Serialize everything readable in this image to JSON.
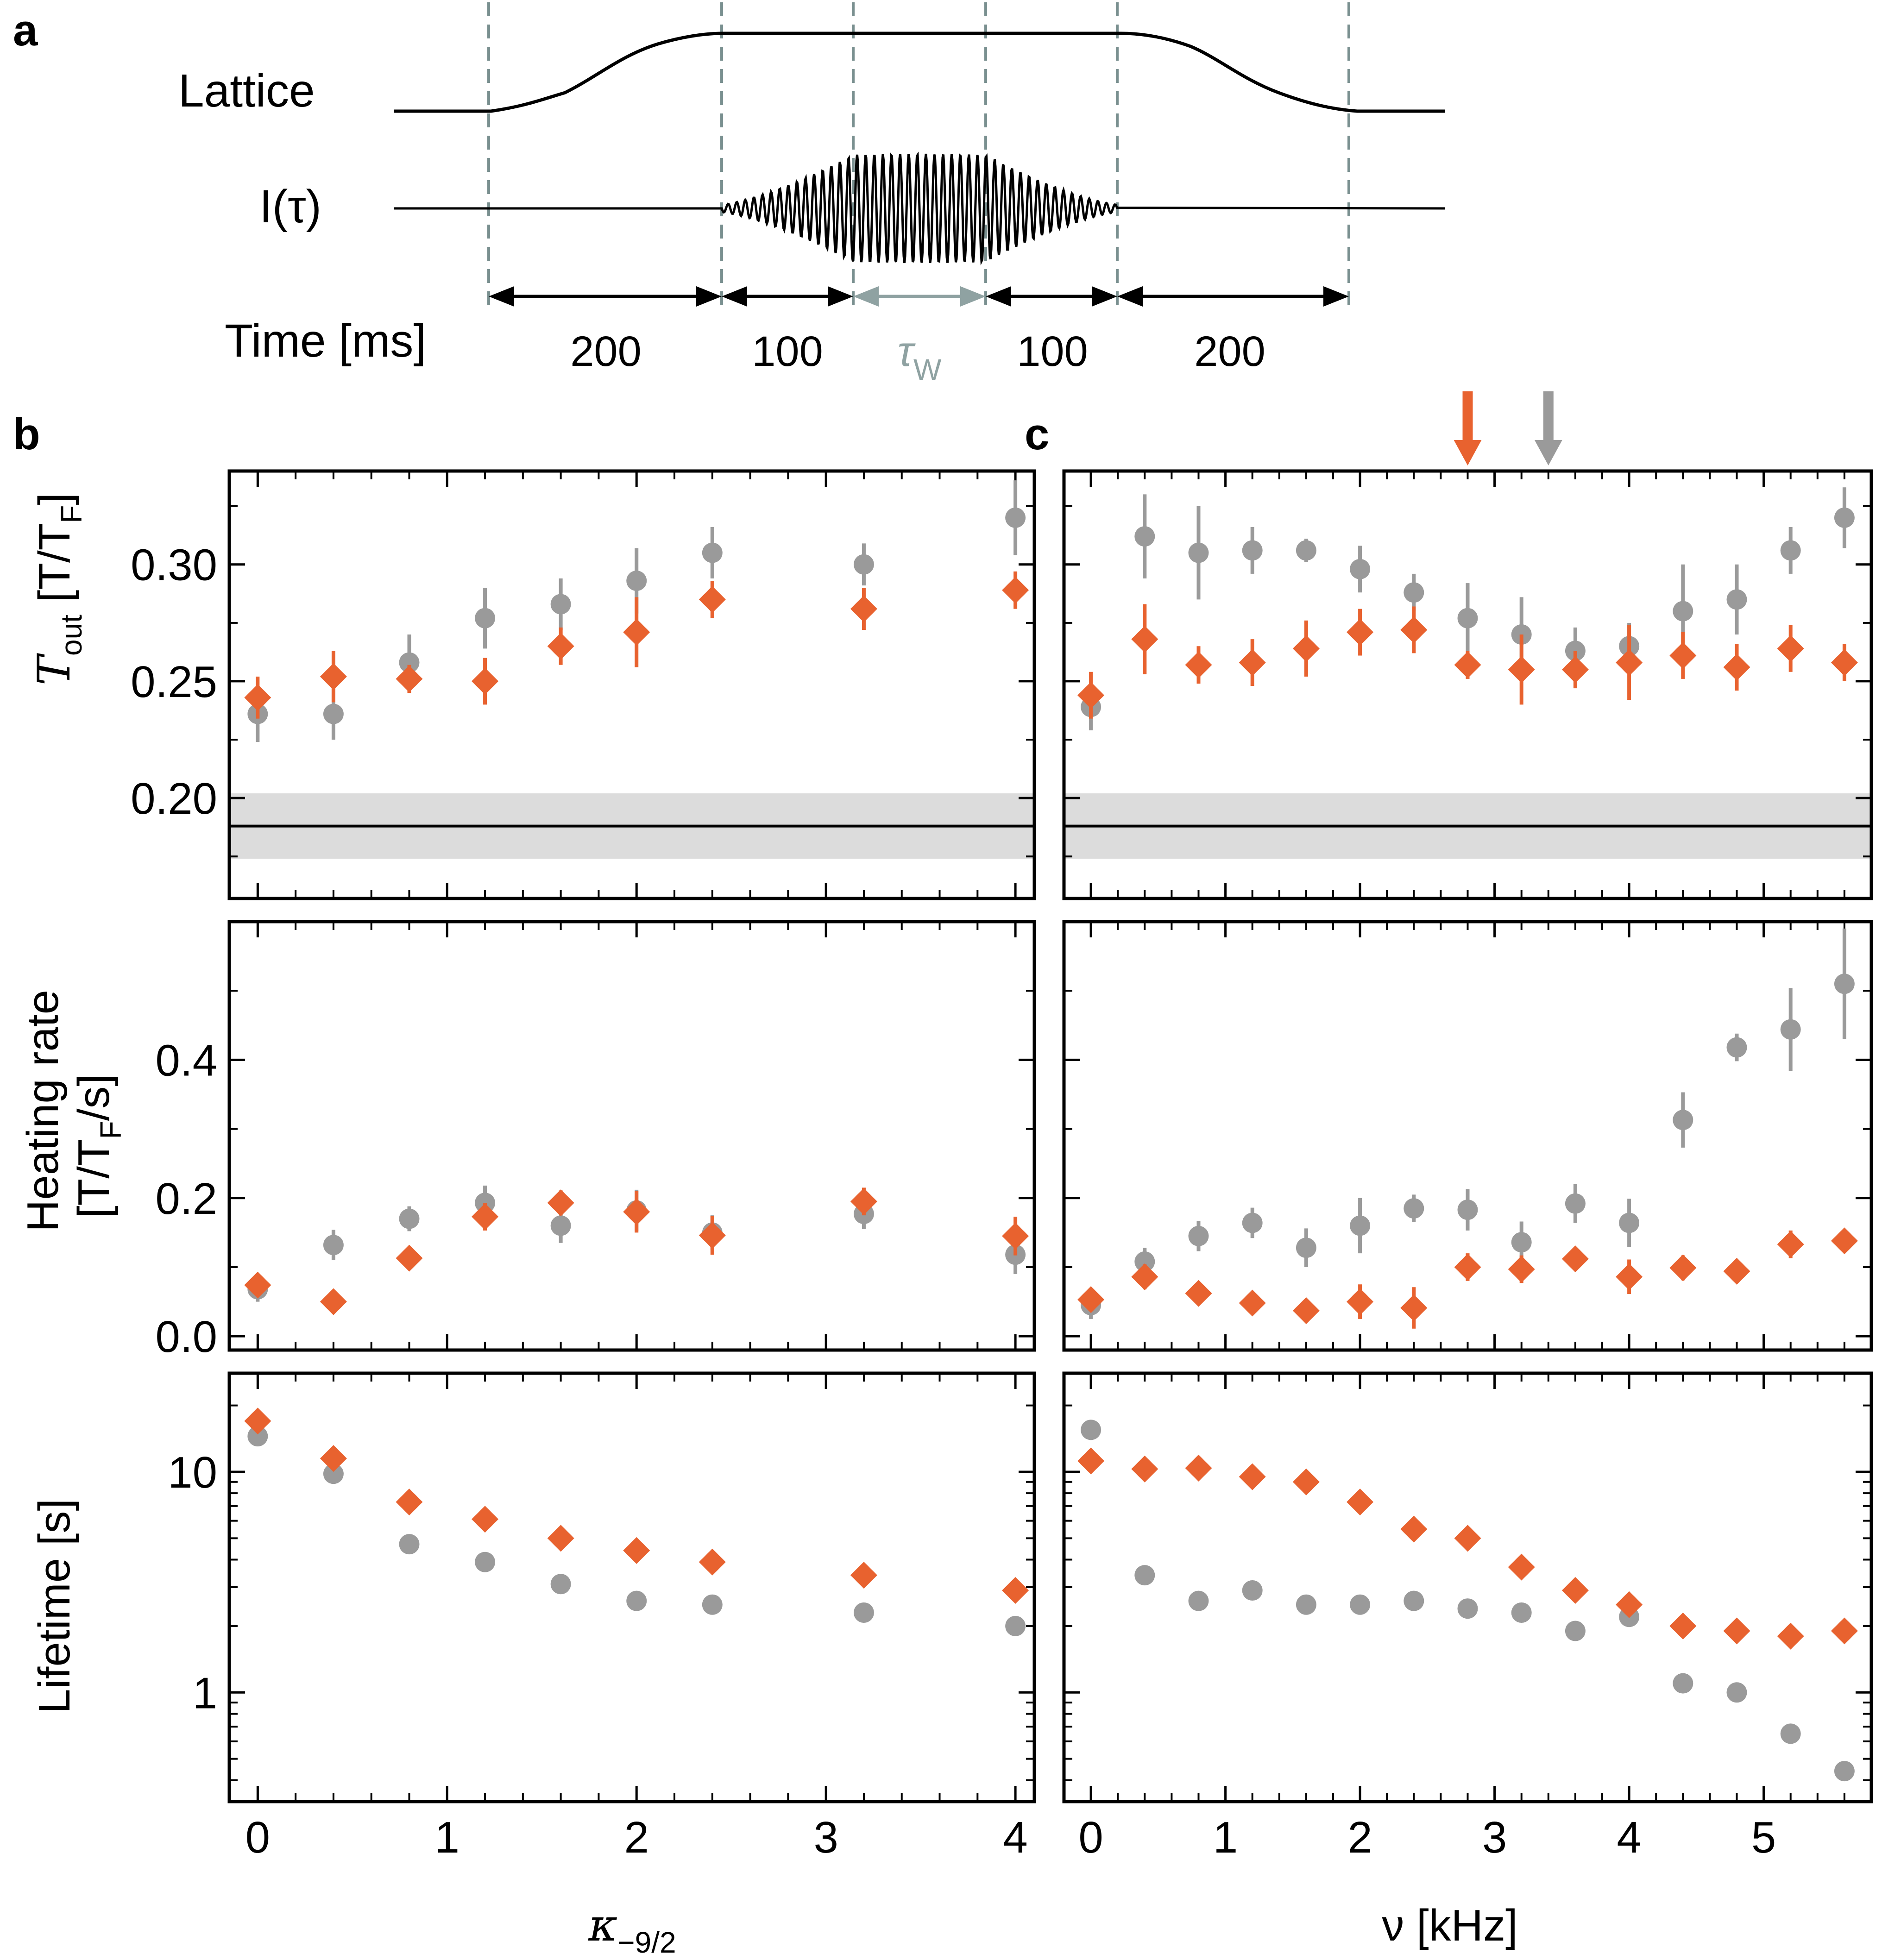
{
  "colors": {
    "orange": "#e8622f",
    "gray": "#9a9a9a",
    "band": "#dcdcdc",
    "dash": "#7a9090",
    "waitArrow": "#8fa2a2"
  },
  "panel_a": {
    "letter": "a",
    "lattice_label": "Lattice",
    "signal_label": "I(τ)",
    "time_label": "Time [ms]",
    "segments": [
      "200",
      "100",
      "τ",
      "100",
      "200"
    ],
    "wait_symbol": "τ",
    "wait_subscript": "W"
  },
  "panel_b": {
    "letter": "b",
    "xlabel_symbol": "κ",
    "xlabel_subscript": "−9/2"
  },
  "panel_c": {
    "letter": "c",
    "xlabel": "ν [kHz]"
  },
  "ylabels": {
    "tout": {
      "main": "T",
      "sub": "out",
      "unit_open": " [T/T",
      "unit_sub": "F",
      "unit_close": "]"
    },
    "heating_line1": "Heating rate",
    "heating_line2": {
      "open": "[T/T",
      "sub": "F",
      "close": "/s]"
    },
    "lifetime": "Lifetime [s]"
  },
  "chart_data": [
    {
      "id": "b-tout",
      "type": "scatter",
      "xlabel": "κ−9/2",
      "ylabel": "Tout [T/TF]",
      "xlim": [
        -0.15,
        4.1
      ],
      "ylim": [
        0.157,
        0.34
      ],
      "yscale": "linear",
      "yticks": [
        0.2,
        0.25,
        0.3
      ],
      "ytick_labels": [
        "0.20",
        "0.25",
        "0.30"
      ],
      "reference": {
        "value": 0.188,
        "band": [
          0.174,
          0.202
        ]
      },
      "series": [
        {
          "name": "gray",
          "marker": "circle",
          "x": [
            0,
            0.4,
            0.8,
            1.2,
            1.6,
            2.0,
            2.4,
            3.2,
            4.0
          ],
          "y": [
            0.236,
            0.236,
            0.258,
            0.277,
            0.283,
            0.293,
            0.305,
            0.3,
            0.32
          ],
          "err": [
            0.012,
            0.011,
            0.012,
            0.013,
            0.011,
            0.014,
            0.011,
            0.009,
            0.016
          ]
        },
        {
          "name": "orange",
          "marker": "diamond",
          "x": [
            0,
            0.4,
            0.8,
            1.2,
            1.6,
            2.0,
            2.4,
            3.2,
            4.0
          ],
          "y": [
            0.243,
            0.252,
            0.251,
            0.25,
            0.265,
            0.271,
            0.285,
            0.281,
            0.289
          ],
          "err": [
            0.009,
            0.011,
            0.006,
            0.01,
            0.008,
            0.015,
            0.008,
            0.009,
            0.008
          ]
        }
      ]
    },
    {
      "id": "b-heating",
      "type": "scatter",
      "xlabel": "κ−9/2",
      "ylabel": "Heating rate [T/TF/s]",
      "xlim": [
        -0.15,
        4.1
      ],
      "ylim": [
        -0.02,
        0.6
      ],
      "yscale": "linear",
      "yticks": [
        0.0,
        0.2,
        0.4
      ],
      "ytick_labels": [
        "0.0",
        "0.2",
        "0.4"
      ],
      "series": [
        {
          "name": "gray",
          "marker": "circle",
          "x": [
            0,
            0.4,
            0.8,
            1.2,
            1.6,
            2.0,
            2.4,
            3.2,
            4.0
          ],
          "y": [
            0.068,
            0.132,
            0.17,
            0.193,
            0.16,
            0.182,
            0.15,
            0.177,
            0.118
          ],
          "err": [
            0.018,
            0.022,
            0.018,
            0.025,
            0.025,
            0.03,
            0.025,
            0.022,
            0.028
          ]
        },
        {
          "name": "orange",
          "marker": "diamond",
          "x": [
            0,
            0.4,
            0.8,
            1.2,
            1.6,
            2.0,
            2.4,
            3.2,
            4.0
          ],
          "y": [
            0.074,
            0.05,
            0.113,
            0.173,
            0.193,
            0.18,
            0.146,
            0.195,
            0.145
          ],
          "err": [
            0.015,
            0.01,
            0.012,
            0.02,
            0.018,
            0.03,
            0.028,
            0.02,
            0.028
          ]
        }
      ]
    },
    {
      "id": "b-lifetime",
      "type": "scatter",
      "xlabel": "κ−9/2",
      "ylabel": "Lifetime [s]",
      "xlim": [
        -0.15,
        4.1
      ],
      "ylim": [
        0.32,
        28
      ],
      "yscale": "log",
      "yticks": [
        1,
        10
      ],
      "ytick_labels": [
        "1",
        "10"
      ],
      "xticks": [
        0,
        1,
        2,
        3,
        4
      ],
      "xtick_labels": [
        "0",
        "1",
        "2",
        "3",
        "4"
      ],
      "series": [
        {
          "name": "gray",
          "marker": "circle",
          "x": [
            0,
            0.4,
            0.8,
            1.2,
            1.6,
            2.0,
            2.4,
            3.2,
            4.0
          ],
          "y": [
            14.5,
            9.8,
            4.7,
            3.9,
            3.1,
            2.6,
            2.5,
            2.3,
            2.0
          ]
        },
        {
          "name": "orange",
          "marker": "diamond",
          "x": [
            0,
            0.4,
            0.8,
            1.2,
            1.6,
            2.0,
            2.4,
            3.2,
            4.0
          ],
          "y": [
            17.0,
            11.5,
            7.3,
            6.1,
            5.0,
            4.4,
            3.9,
            3.4,
            2.9
          ]
        }
      ]
    },
    {
      "id": "c-tout",
      "type": "scatter",
      "xlabel": "ν [kHz]",
      "ylabel": "Tout [T/TF]",
      "xlim": [
        -0.2,
        5.8
      ],
      "ylim": [
        0.157,
        0.34
      ],
      "yscale": "linear",
      "yticks": [
        0.2,
        0.25,
        0.3
      ],
      "reference": {
        "value": 0.188,
        "band": [
          0.174,
          0.202
        ]
      },
      "resonance_arrows": [
        {
          "x": 2.8,
          "color": "orange"
        },
        {
          "x": 3.4,
          "color": "gray"
        }
      ],
      "series": [
        {
          "name": "gray",
          "marker": "circle",
          "x": [
            0,
            0.4,
            0.8,
            1.2,
            1.6,
            2.0,
            2.4,
            2.8,
            3.2,
            3.6,
            4.0,
            4.4,
            4.8,
            5.2,
            5.6
          ],
          "y": [
            0.239,
            0.312,
            0.305,
            0.306,
            0.306,
            0.298,
            0.288,
            0.277,
            0.27,
            0.263,
            0.265,
            0.28,
            0.285,
            0.306,
            0.32
          ],
          "err": [
            0.01,
            0.018,
            0.02,
            0.01,
            0.005,
            0.01,
            0.008,
            0.015,
            0.016,
            0.01,
            0.01,
            0.02,
            0.015,
            0.01,
            0.013
          ]
        },
        {
          "name": "orange",
          "marker": "diamond",
          "x": [
            0,
            0.4,
            0.8,
            1.2,
            1.6,
            2.0,
            2.4,
            2.8,
            3.2,
            3.6,
            4.0,
            4.4,
            4.8,
            5.2,
            5.6
          ],
          "y": [
            0.244,
            0.268,
            0.257,
            0.258,
            0.264,
            0.271,
            0.272,
            0.257,
            0.255,
            0.255,
            0.258,
            0.261,
            0.256,
            0.264,
            0.258
          ],
          "err": [
            0.01,
            0.015,
            0.008,
            0.01,
            0.012,
            0.01,
            0.01,
            0.006,
            0.015,
            0.008,
            0.016,
            0.01,
            0.01,
            0.01,
            0.008
          ]
        }
      ]
    },
    {
      "id": "c-heating",
      "type": "scatter",
      "xlabel": "ν [kHz]",
      "ylabel": "Heating rate [T/TF/s]",
      "xlim": [
        -0.2,
        5.8
      ],
      "ylim": [
        -0.02,
        0.6
      ],
      "yscale": "linear",
      "yticks": [
        0.0,
        0.2,
        0.4
      ],
      "series": [
        {
          "name": "gray",
          "marker": "circle",
          "x": [
            0,
            0.4,
            0.8,
            1.2,
            1.6,
            2.0,
            2.4,
            2.8,
            3.2,
            3.6,
            4.0,
            4.4,
            4.8,
            5.2,
            5.6
          ],
          "y": [
            0.045,
            0.108,
            0.145,
            0.164,
            0.128,
            0.16,
            0.185,
            0.183,
            0.136,
            0.192,
            0.164,
            0.313,
            0.418,
            0.444,
            0.51
          ],
          "err": [
            0.02,
            0.02,
            0.022,
            0.022,
            0.028,
            0.04,
            0.02,
            0.03,
            0.03,
            0.028,
            0.035,
            0.04,
            0.02,
            0.06,
            0.08
          ]
        },
        {
          "name": "orange",
          "marker": "diamond",
          "x": [
            0,
            0.4,
            0.8,
            1.2,
            1.6,
            2.0,
            2.4,
            2.8,
            3.2,
            3.6,
            4.0,
            4.4,
            4.8,
            5.2,
            5.6
          ],
          "y": [
            0.053,
            0.086,
            0.062,
            0.048,
            0.037,
            0.05,
            0.041,
            0.1,
            0.097,
            0.112,
            0.086,
            0.099,
            0.094,
            0.133,
            0.138
          ],
          "err": [
            0.015,
            0.018,
            0.015,
            0.015,
            0.012,
            0.025,
            0.03,
            0.02,
            0.02,
            0.01,
            0.025,
            0.018,
            0.01,
            0.02,
            0.012
          ]
        }
      ]
    },
    {
      "id": "c-lifetime",
      "type": "scatter",
      "xlabel": "ν [kHz]",
      "ylabel": "Lifetime [s]",
      "xlim": [
        -0.2,
        5.8
      ],
      "ylim": [
        0.32,
        28
      ],
      "yscale": "log",
      "yticks": [
        1,
        10
      ],
      "xticks": [
        0,
        1,
        2,
        3,
        4,
        5
      ],
      "xtick_labels": [
        "0",
        "1",
        "2",
        "3",
        "4",
        "5"
      ],
      "series": [
        {
          "name": "gray",
          "marker": "circle",
          "x": [
            0,
            0.4,
            0.8,
            1.2,
            1.6,
            2.0,
            2.4,
            2.8,
            3.2,
            3.6,
            4.0,
            4.4,
            4.8,
            5.2,
            5.6
          ],
          "y": [
            15.5,
            3.4,
            2.6,
            2.9,
            2.5,
            2.5,
            2.6,
            2.4,
            2.3,
            1.9,
            2.2,
            1.1,
            1.0,
            0.65,
            0.44
          ]
        },
        {
          "name": "orange",
          "marker": "diamond",
          "x": [
            0,
            0.4,
            0.8,
            1.2,
            1.6,
            2.0,
            2.4,
            2.8,
            3.2,
            3.6,
            4.0,
            4.4,
            4.8,
            5.2,
            5.6
          ],
          "y": [
            11.2,
            10.3,
            10.4,
            9.5,
            9.0,
            7.3,
            5.5,
            5.0,
            3.7,
            2.9,
            2.5,
            2.0,
            1.9,
            1.8,
            1.9
          ]
        }
      ]
    }
  ]
}
